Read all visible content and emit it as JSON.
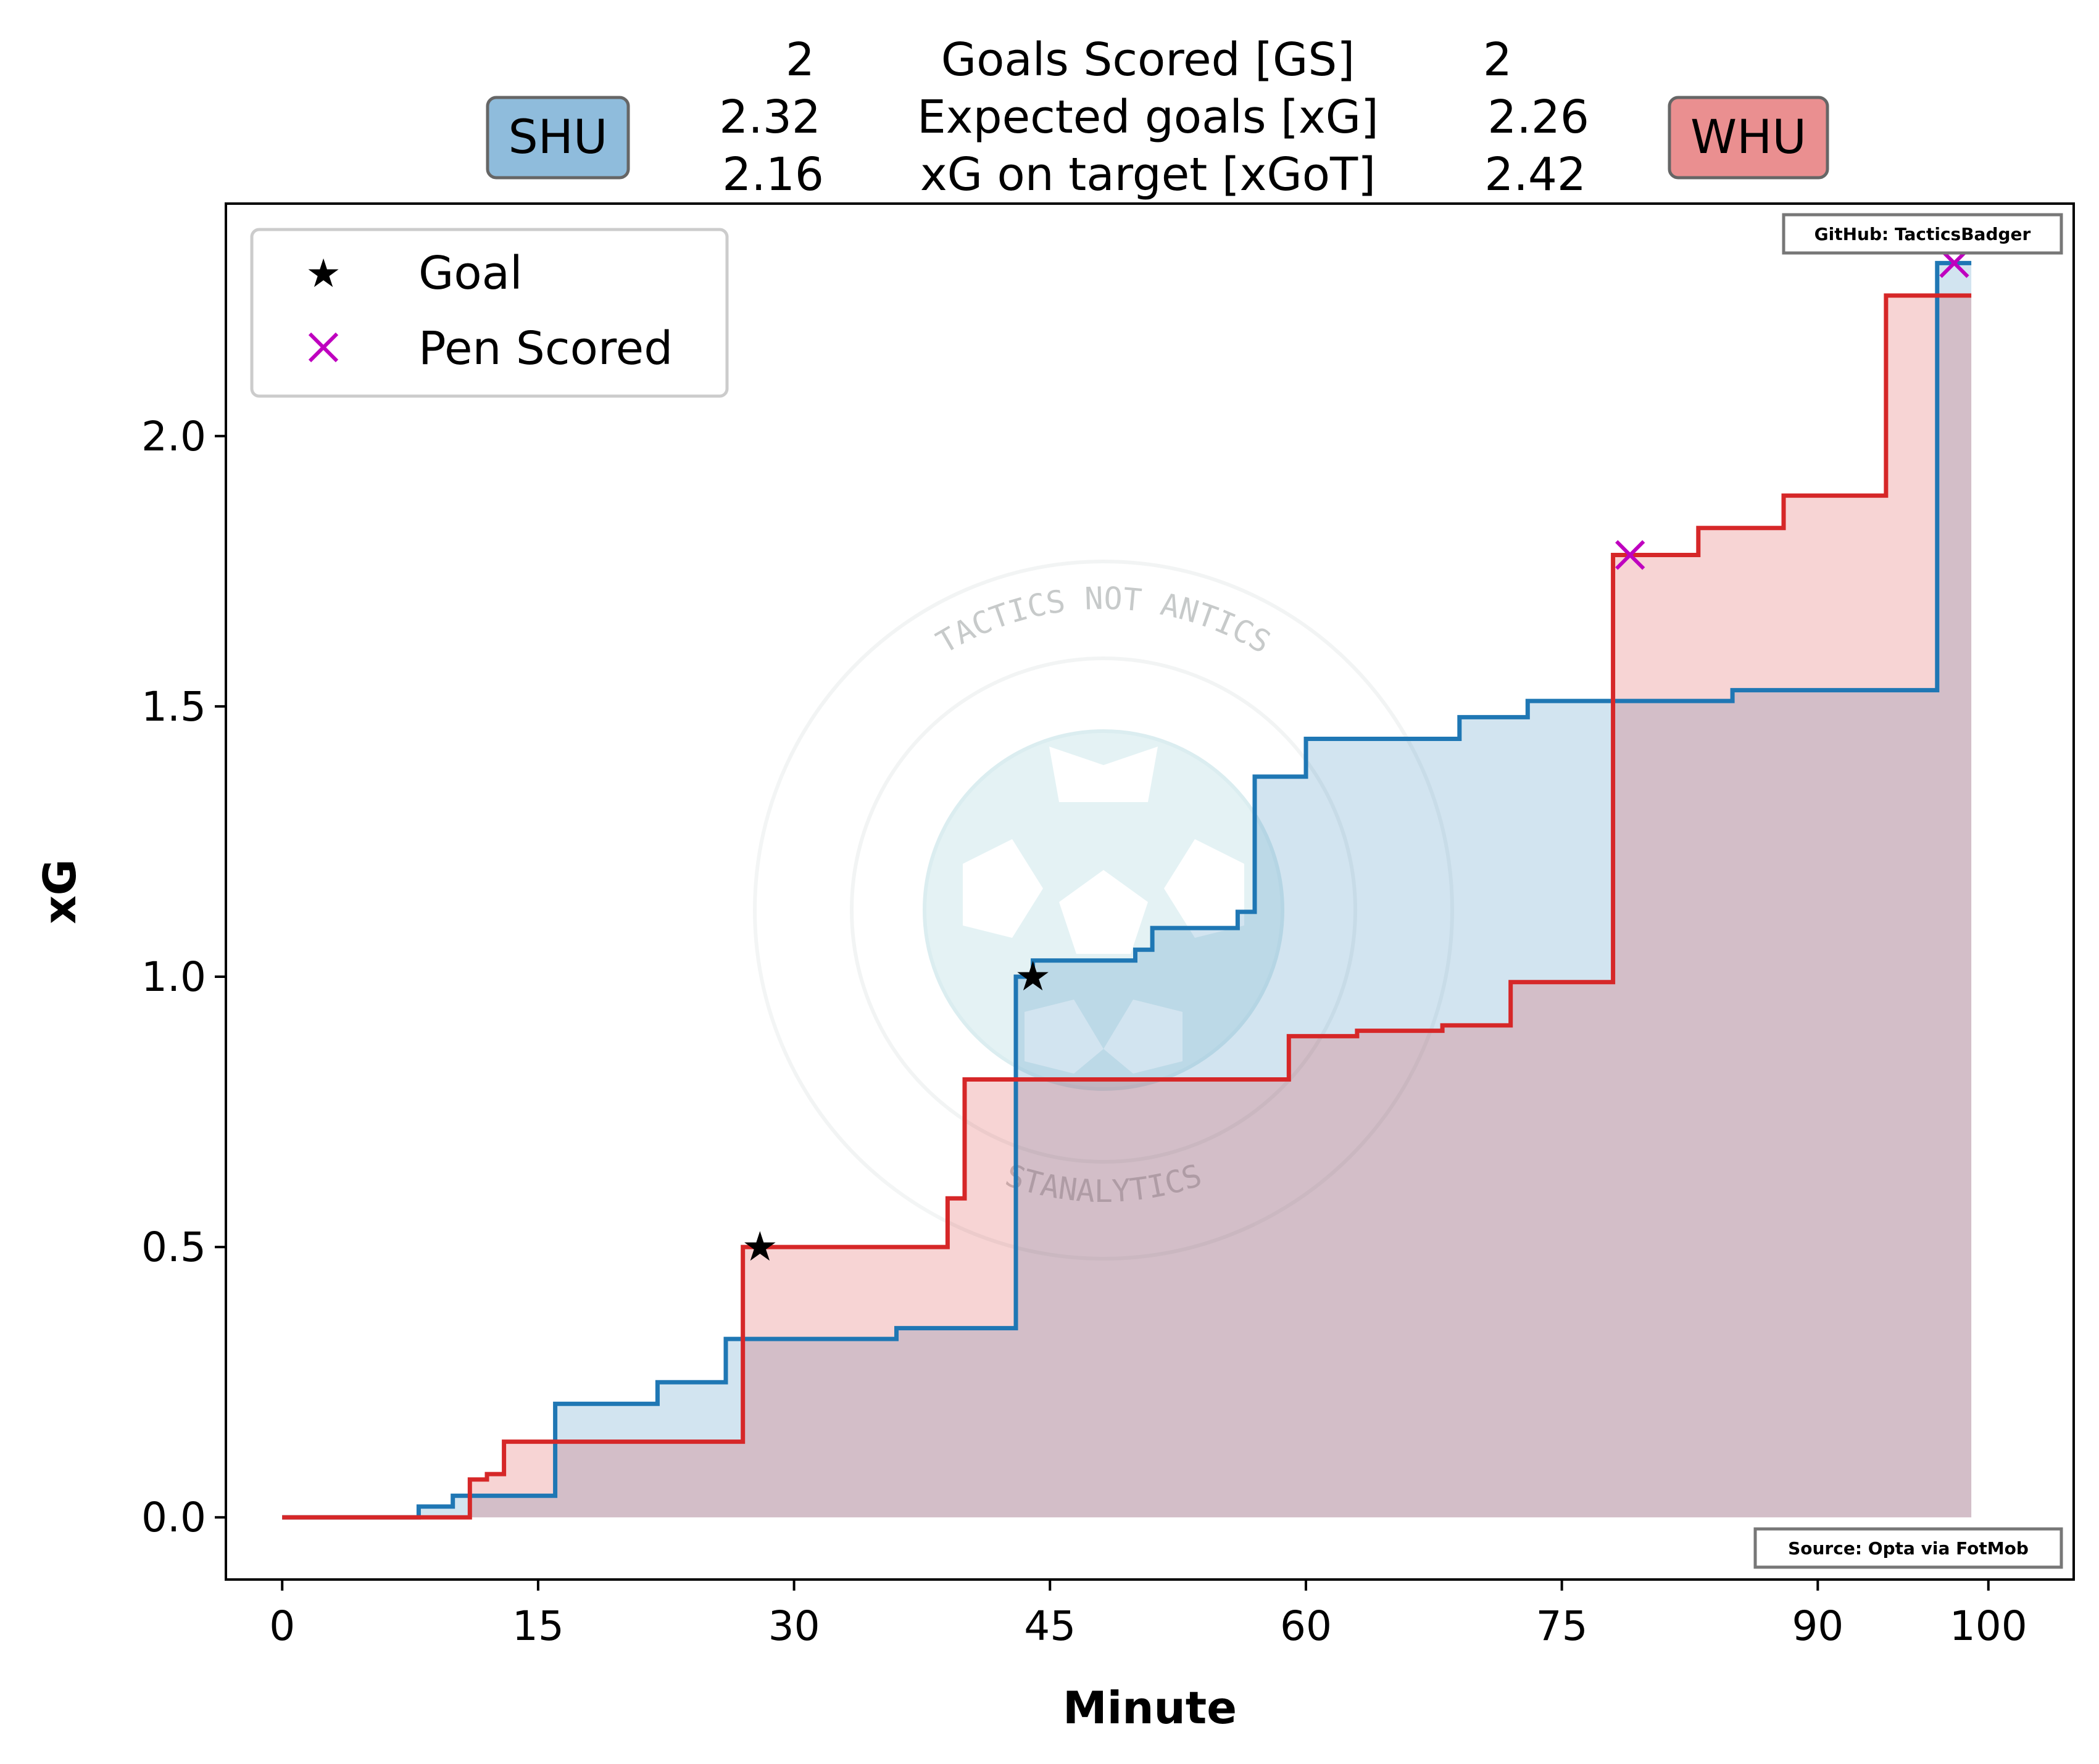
{
  "header": {
    "home_team": "SHU",
    "away_team": "WHU",
    "home_color": "#8fbcdc",
    "away_color": "#ea8f90",
    "stats": [
      {
        "label": "Goals Scored [GS]",
        "home": "2",
        "away": "2"
      },
      {
        "label": "Expected goals [xG]",
        "home": "2.32",
        "away": "2.26"
      },
      {
        "label": "xG on target [xGoT]",
        "home": "2.16",
        "away": "2.42"
      }
    ]
  },
  "credits": {
    "github": "GitHub: TacticsBadger",
    "source": "Source: Opta via FotMob"
  },
  "watermark": {
    "top_text": "TACTICS NOT ANTICS",
    "bottom_text": "STANALYTICS"
  },
  "legend": {
    "placement": "top-left",
    "items": [
      {
        "label": "Goal",
        "marker": "star-icon",
        "color": "#000000"
      },
      {
        "label": "Pen Scored",
        "marker": "x-icon",
        "color": "#bf00bf"
      }
    ]
  },
  "chart_data": {
    "type": "line",
    "xlabel": "Minute",
    "ylabel": "xG",
    "xlim": [
      -3.3,
      105
    ],
    "ylim": [
      -0.115,
      2.43
    ],
    "xticks": [
      0,
      15,
      30,
      45,
      60,
      75,
      90,
      100
    ],
    "yticks": [
      0.0,
      0.5,
      1.0,
      1.5,
      2.0
    ],
    "ytick_labels": [
      "0.0",
      "0.5",
      "1.0",
      "1.5",
      "2.0"
    ],
    "grid": false,
    "series": [
      {
        "team": "SHU",
        "color": "#1f77b4",
        "fill": "#1f77b4",
        "steps": [
          [
            0,
            0.0
          ],
          [
            8,
            0.02
          ],
          [
            10,
            0.04
          ],
          [
            16,
            0.21
          ],
          [
            22,
            0.25
          ],
          [
            26,
            0.33
          ],
          [
            36,
            0.35
          ],
          [
            43,
            1.0
          ],
          [
            44,
            1.03
          ],
          [
            50,
            1.05
          ],
          [
            51,
            1.09
          ],
          [
            56,
            1.12
          ],
          [
            57,
            1.37
          ],
          [
            60,
            1.44
          ],
          [
            69,
            1.48
          ],
          [
            73,
            1.51
          ],
          [
            85,
            1.53
          ],
          [
            97,
            2.32
          ],
          [
            99,
            2.32
          ]
        ]
      },
      {
        "team": "WHU",
        "color": "#d62728",
        "fill": "#d62728",
        "steps": [
          [
            0,
            0.0
          ],
          [
            11,
            0.07
          ],
          [
            12,
            0.08
          ],
          [
            13,
            0.14
          ],
          [
            27,
            0.5
          ],
          [
            39,
            0.59
          ],
          [
            40,
            0.81
          ],
          [
            59,
            0.89
          ],
          [
            63,
            0.9
          ],
          [
            68,
            0.91
          ],
          [
            72,
            0.94
          ],
          [
            72,
            0.99
          ],
          [
            78,
            1.78
          ],
          [
            83,
            1.83
          ],
          [
            88,
            1.89
          ],
          [
            94,
            2.26
          ],
          [
            99,
            2.26
          ]
        ]
      }
    ],
    "goals": [
      {
        "team": "WHU",
        "minute": 28,
        "xg": 0.5,
        "type": "goal"
      },
      {
        "team": "SHU",
        "minute": 44,
        "xg": 1.0,
        "type": "goal"
      },
      {
        "team": "WHU",
        "minute": 79,
        "xg": 1.78,
        "type": "pen"
      },
      {
        "team": "SHU",
        "minute": 98,
        "xg": 2.32,
        "type": "pen"
      }
    ]
  }
}
